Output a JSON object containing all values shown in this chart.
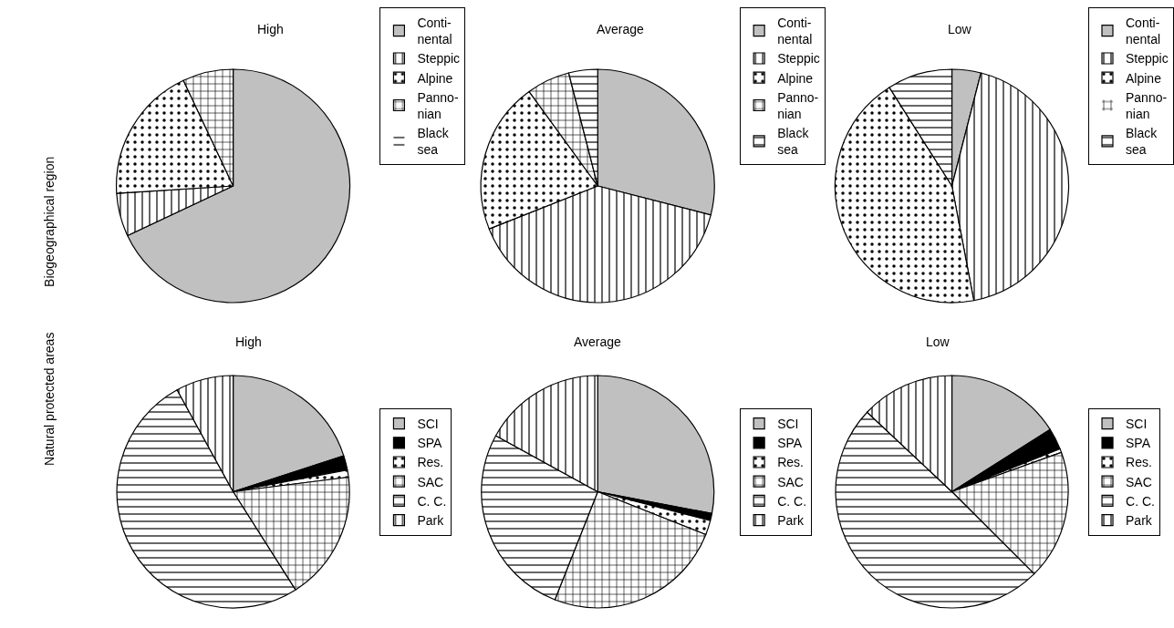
{
  "chart_data": [
    {
      "type": "pie",
      "title": "High",
      "ylabel": "Biogeographical region",
      "categories": [
        "Conti-\nnental",
        "Steppic",
        "Alpine",
        "Panno-\nnian",
        "Black\nsea"
      ],
      "values": [
        68,
        6,
        19,
        7,
        0
      ],
      "colors": [
        "#c0c0c0",
        "#000000",
        "#000000",
        "#000000",
        "#000000"
      ],
      "legend": "right"
    },
    {
      "type": "pie",
      "title": "Average",
      "categories": [
        "Conti-\nnental",
        "Steppic",
        "Alpine",
        "Panno-\nnian",
        "Black\nsea"
      ],
      "values": [
        29,
        40,
        21,
        6,
        4
      ],
      "colors": [
        "#c0c0c0",
        "#000000",
        "#000000",
        "#000000",
        "#000000"
      ],
      "legend": "right"
    },
    {
      "type": "pie",
      "title": "Low",
      "categories": [
        "Conti-\nnental",
        "Steppic",
        "Alpine",
        "Panno-\nnian",
        "Black\nsea"
      ],
      "values": [
        4,
        43,
        44,
        0,
        9
      ],
      "colors": [
        "#c0c0c0",
        "#000000",
        "#000000",
        "#000000",
        "#000000"
      ],
      "legend": "right"
    },
    {
      "type": "pie",
      "title": "High",
      "ylabel": "Natural protected areas",
      "categories": [
        "SCI",
        "SPA",
        "Res.",
        "SAC",
        "C. C.",
        "Park"
      ],
      "values": [
        20,
        2,
        1,
        18,
        51,
        8
      ],
      "colors": [
        "#c0c0c0",
        "#000000",
        "#000000",
        "#000000",
        "#000000",
        "#000000"
      ],
      "legend": "right"
    },
    {
      "type": "pie",
      "title": "Average",
      "categories": [
        "SCI",
        "SPA",
        "Res.",
        "SAC",
        "C. C.",
        "Park"
      ],
      "values": [
        28,
        1,
        2,
        25,
        27,
        17
      ],
      "colors": [
        "#c0c0c0",
        "#000000",
        "#000000",
        "#000000",
        "#000000",
        "#000000"
      ],
      "legend": "right"
    },
    {
      "type": "pie",
      "title": "Low",
      "categories": [
        "SCI",
        "SPA",
        "Res.",
        "SAC",
        "C. C.",
        "Park"
      ],
      "values": [
        16,
        3,
        0.5,
        18,
        49.5,
        13
      ],
      "colors": [
        "#c0c0c0",
        "#000000",
        "#000000",
        "#000000",
        "#000000",
        "#000000"
      ],
      "legend": "right"
    }
  ]
}
